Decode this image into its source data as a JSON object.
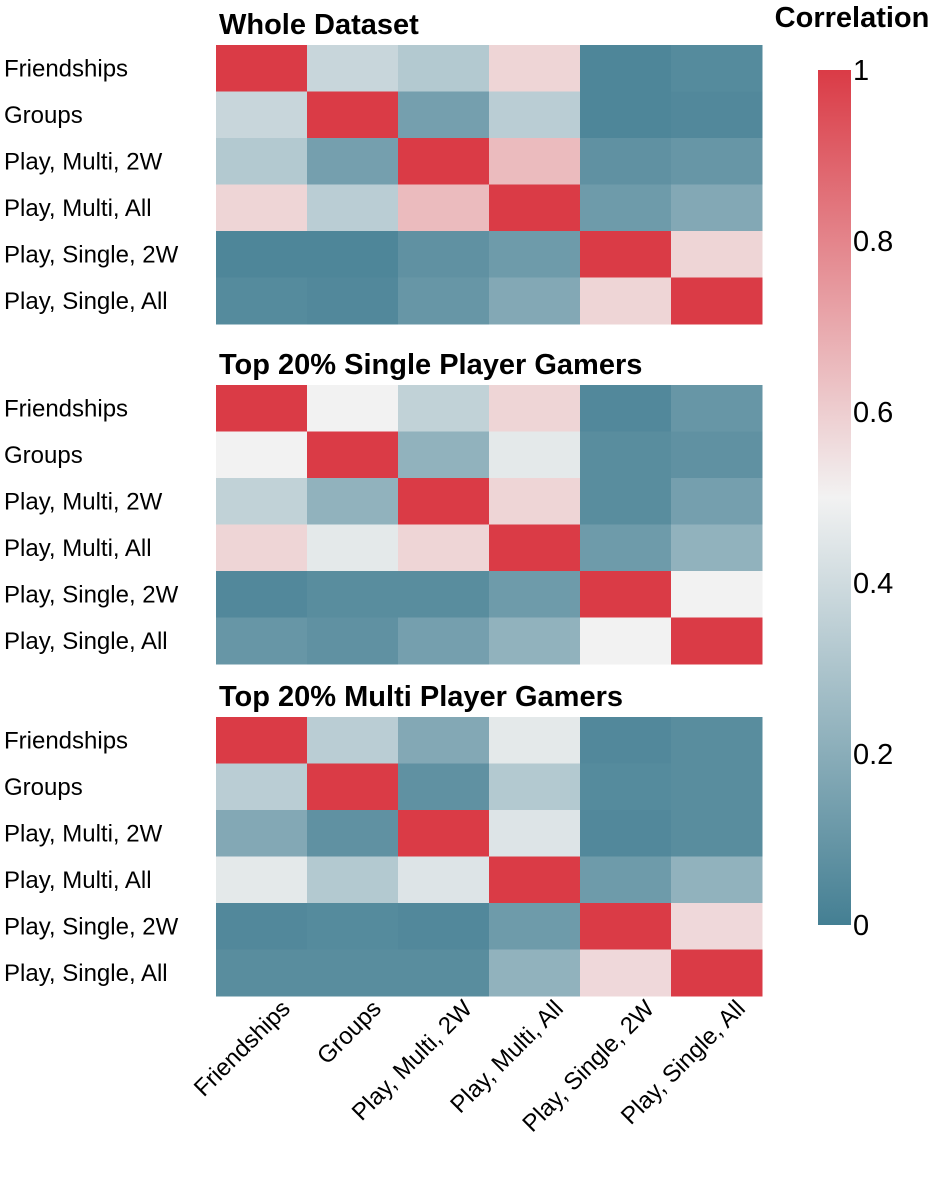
{
  "chart_data": {
    "type": "heatmap",
    "variables": [
      "Friendships",
      "Groups",
      "Play, Multi, 2W",
      "Play, Multi, All",
      "Play, Single, 2W",
      "Play, Single, All"
    ],
    "colorbar": {
      "title": "Correlation",
      "vmin": 0,
      "vmax": 1,
      "ticks": [
        0,
        0.2,
        0.4,
        0.6,
        0.8,
        1
      ],
      "tick_labels": [
        "0",
        "0.2",
        "0.4",
        "0.6",
        "0.8",
        "1"
      ],
      "colors": {
        "low": "#447f93",
        "mid": "#f2f2f2",
        "high": "#da3b46"
      }
    },
    "panels": [
      {
        "title": "Whole Dataset",
        "matrix": [
          [
            1.0,
            0.38,
            0.32,
            0.58,
            0.03,
            0.05
          ],
          [
            0.38,
            1.0,
            0.14,
            0.34,
            0.03,
            0.04
          ],
          [
            0.32,
            0.14,
            1.0,
            0.65,
            0.08,
            0.1
          ],
          [
            0.58,
            0.34,
            0.65,
            1.0,
            0.12,
            0.18
          ],
          [
            0.03,
            0.03,
            0.08,
            0.12,
            1.0,
            0.58
          ],
          [
            0.05,
            0.04,
            0.1,
            0.18,
            0.58,
            1.0
          ]
        ]
      },
      {
        "title": "Top 20% Single Player Gamers",
        "matrix": [
          [
            1.0,
            0.5,
            0.36,
            0.58,
            0.04,
            0.1
          ],
          [
            0.5,
            1.0,
            0.22,
            0.46,
            0.06,
            0.08
          ],
          [
            0.36,
            0.22,
            1.0,
            0.58,
            0.06,
            0.14
          ],
          [
            0.58,
            0.46,
            0.58,
            1.0,
            0.12,
            0.22
          ],
          [
            0.04,
            0.06,
            0.06,
            0.12,
            1.0,
            0.5
          ],
          [
            0.1,
            0.08,
            0.14,
            0.22,
            0.5,
            1.0
          ]
        ]
      },
      {
        "title": "Top 20% Multi Player Gamers",
        "matrix": [
          [
            1.0,
            0.34,
            0.18,
            0.46,
            0.04,
            0.06
          ],
          [
            0.34,
            1.0,
            0.08,
            0.32,
            0.05,
            0.06
          ],
          [
            0.18,
            0.08,
            1.0,
            0.44,
            0.04,
            0.06
          ],
          [
            0.46,
            0.32,
            0.44,
            1.0,
            0.12,
            0.22
          ],
          [
            0.04,
            0.05,
            0.04,
            0.12,
            1.0,
            0.57
          ],
          [
            0.06,
            0.06,
            0.06,
            0.22,
            0.57,
            1.0
          ]
        ]
      }
    ]
  }
}
